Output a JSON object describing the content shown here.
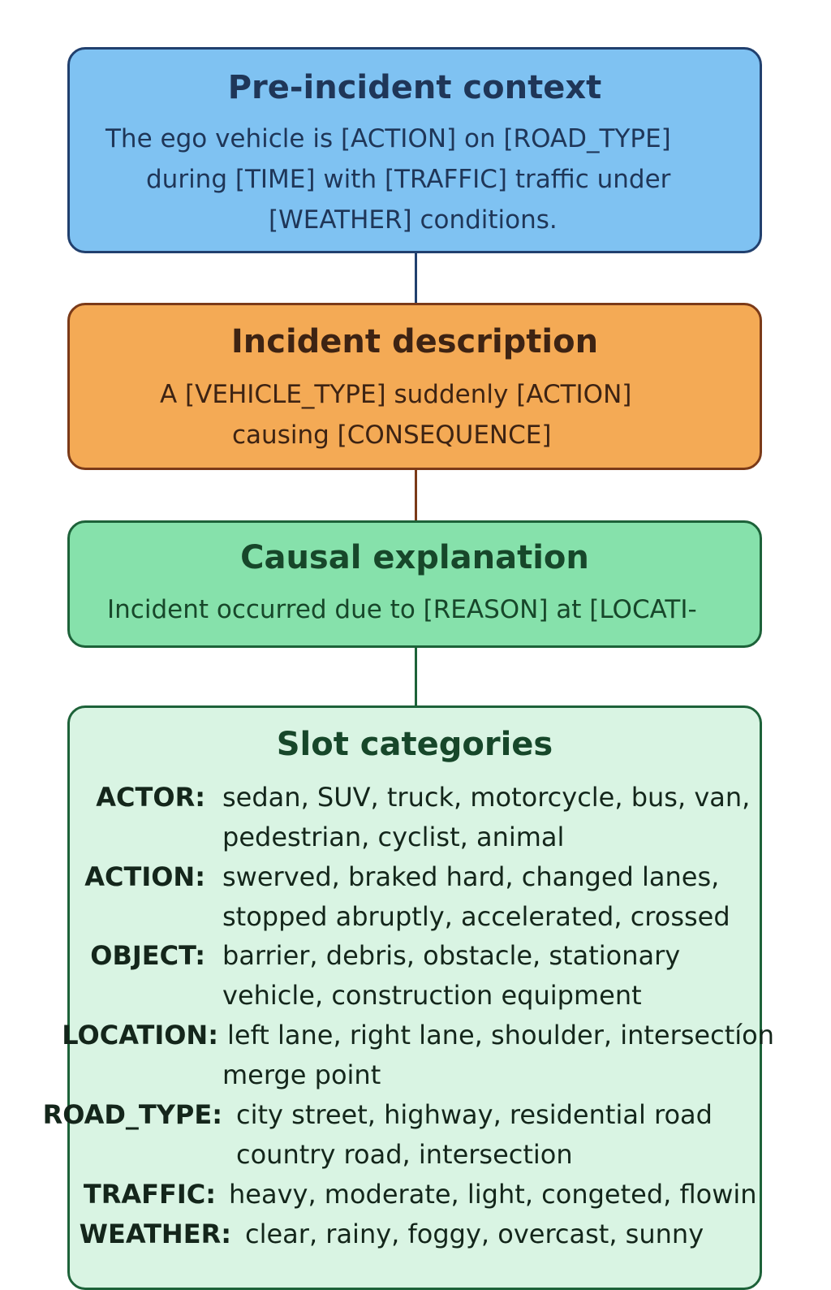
{
  "pre_incident": {
    "title": "Pre-incident context",
    "lines": [
      "The ego vehicle is [ACTION] on [ROAD_TYPE]",
      "during [TIME] with [TRAFFIC] traffic under",
      "[WEATHER] conditions."
    ]
  },
  "incident": {
    "title": "Incident description",
    "lines": [
      "A [VEHICLE_TYPE] suddenly [ACTION]",
      "causing [CONSEQUENCE]"
    ]
  },
  "causal": {
    "title": "Causal explanation",
    "lines": [
      "Incident occurred due to [REASON] at [LOCATI-"
    ]
  },
  "slots": {
    "title": "Slot categories",
    "rows": [
      {
        "key": "ACTOR:",
        "values": [
          "sedan, SUV, truck, motorcycle, bus, van,",
          "pedestrian, cyclist, animal"
        ]
      },
      {
        "key": "ACTION:",
        "values": [
          "swerved, braked hard, changed lanes,",
          "stopped abruptly, accelerated, crossed"
        ]
      },
      {
        "key": "OBJECT:",
        "values": [
          "barrier, debris, obstacle, stationary",
          "vehicle, construction equipment"
        ]
      },
      {
        "key": "LOCATION:",
        "values": [
          "left lane, right lane, shoulder, intersectíon",
          "merge point"
        ]
      },
      {
        "key": "ROAD_TYPE:",
        "values": [
          "city street, highway, residential road",
          "country road, intersection"
        ]
      },
      {
        "key": "TRAFFIC:",
        "values": [
          "heavy, moderate, light, congeted, flowin"
        ]
      },
      {
        "key": "WEATHER:",
        "values": [
          "clear, rainy, foggy, overcast, sunny"
        ]
      }
    ]
  },
  "colors": {
    "pre_incident_fill": "#7fc2f2",
    "incident_fill": "#f4aa55",
    "causal_fill": "#86e1ab",
    "slots_fill": "#d9f4e3"
  }
}
